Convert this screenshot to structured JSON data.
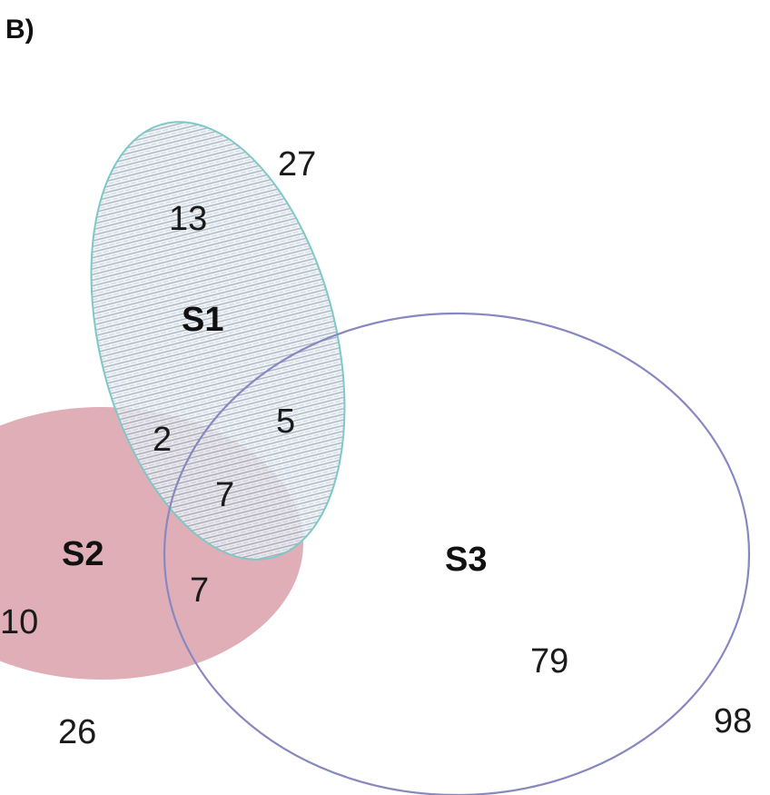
{
  "panel_label": "B)",
  "colors": {
    "s1_stroke": "#7ec8c8",
    "s1_hatch": "#9aa8b8",
    "s2_fill": "#d9a0aa",
    "s3_stroke": "#8888c0",
    "text": "#1a1a1a"
  },
  "sets": {
    "s1": {
      "label": "S1"
    },
    "s2": {
      "label": "S2"
    },
    "s3": {
      "label": "S3"
    }
  },
  "regions": {
    "s1_total": "27",
    "s1_only": "13",
    "s1_s3": "5",
    "s1_s2": "2",
    "s1_s2_s3": "7",
    "s2_s3": "7",
    "s2_only": "10",
    "s2_total": "26",
    "s3_only": "79",
    "s3_total": "98"
  }
}
